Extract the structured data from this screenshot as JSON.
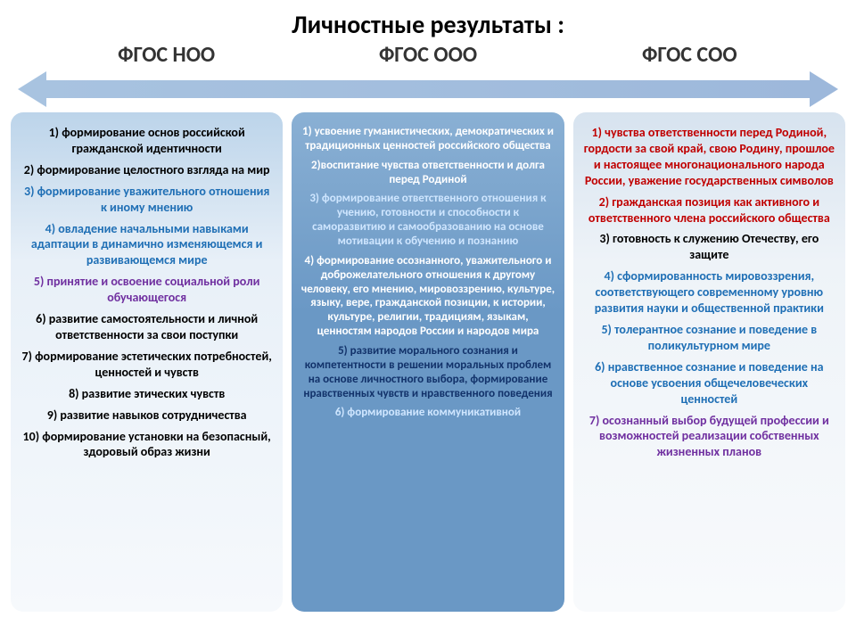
{
  "title": "Личностные результаты :",
  "headers": [
    "ФГОС НОО",
    "ФГОС ООО",
    "ФГОС СОО"
  ],
  "style": {
    "black": "#000000",
    "blue": "#1f6fb5",
    "purple": "#7030a0",
    "white": "#ffffff",
    "red": "#c00000",
    "darknavy": "#12326a",
    "lightblue_on_blue": "#cfe6ff"
  },
  "columns": [
    {
      "bg": "col0",
      "items": [
        {
          "c": "black",
          "t": "1) формирование основ российской гражданской идентичности"
        },
        {
          "c": "black",
          "t": "2) формирование целостного взгляда на мир"
        },
        {
          "c": "blue",
          "t": "3) формирование уважительного отношения к иному мнению"
        },
        {
          "c": "blue",
          "t": "4) овладение начальными навыками адаптации в динамично изменяющемся и развивающемся мире"
        },
        {
          "c": "purple",
          "t": "5) принятие и освоение социальной роли обучающегося"
        },
        {
          "c": "black",
          "t": "6) развитие самостоятельности и личной ответственности за свои поступки"
        },
        {
          "c": "black",
          "t": "7) формирование эстетических потребностей, ценностей и чувств"
        },
        {
          "c": "black",
          "t": "8) развитие этических чувств"
        },
        {
          "c": "black",
          "t": "9) развитие навыков сотрудничества"
        },
        {
          "c": "black",
          "t": "10) формирование установки на безопасный, здоровый образ жизни"
        }
      ]
    },
    {
      "bg": "col1",
      "items": [
        {
          "c": "white",
          "t": "1) усвоение гуманистических, демократических и традиционных ценностей российского общества"
        },
        {
          "c": "white",
          "t": "2)воспитание чувства ответственности и долга перед Родиной"
        },
        {
          "c": "lightblue_on_blue",
          "t": "3) формирование ответственного отношения к учению, готовности и способности к саморазвитию и самообразованию на основе мотивации к обучению и познанию"
        },
        {
          "c": "white",
          "t": "4) формирование осознанного, уважительного и доброжелательного отношения к другому человеку, его мнению, мировоззрению, культуре, языку, вере, гражданской позиции, к истории, культуре, религии, традициям, языкам, ценностям народов России и народов мира"
        },
        {
          "c": "darknavy",
          "t": "5) развитие морального сознания и компетентности в решении моральных проблем на основе личностного выбора, формирование нравственных чувств и нравственного поведения"
        },
        {
          "c": "lightblue_on_blue",
          "t": "6) формирование коммуникативной"
        }
      ]
    },
    {
      "bg": "col2",
      "items": [
        {
          "c": "red",
          "t": "1) чувства ответственности перед Родиной, гордости за свой край, свою Родину, прошлое и настоящее многонационального народа России, уважение государственных символов"
        },
        {
          "c": "red",
          "t": "2) гражданская позиция как активного и ответственного члена российского общества"
        },
        {
          "c": "black",
          "t": "3) готовность к служению Отечеству, его защите"
        },
        {
          "c": "blue",
          "t": "4) сформированность мировоззрения, соответствующего современному уровню развития науки и общественной практики"
        },
        {
          "c": "blue",
          "t": "5) толерантное сознание и поведение в поликультурном мире"
        },
        {
          "c": "blue",
          "t": "6) нравственное сознание и поведение на основе усвоения общечеловеческих ценностей"
        },
        {
          "c": "purple",
          "t": "7) осознанный выбор будущей профессии и возможностей реализации собственных жизненных планов"
        }
      ]
    }
  ]
}
